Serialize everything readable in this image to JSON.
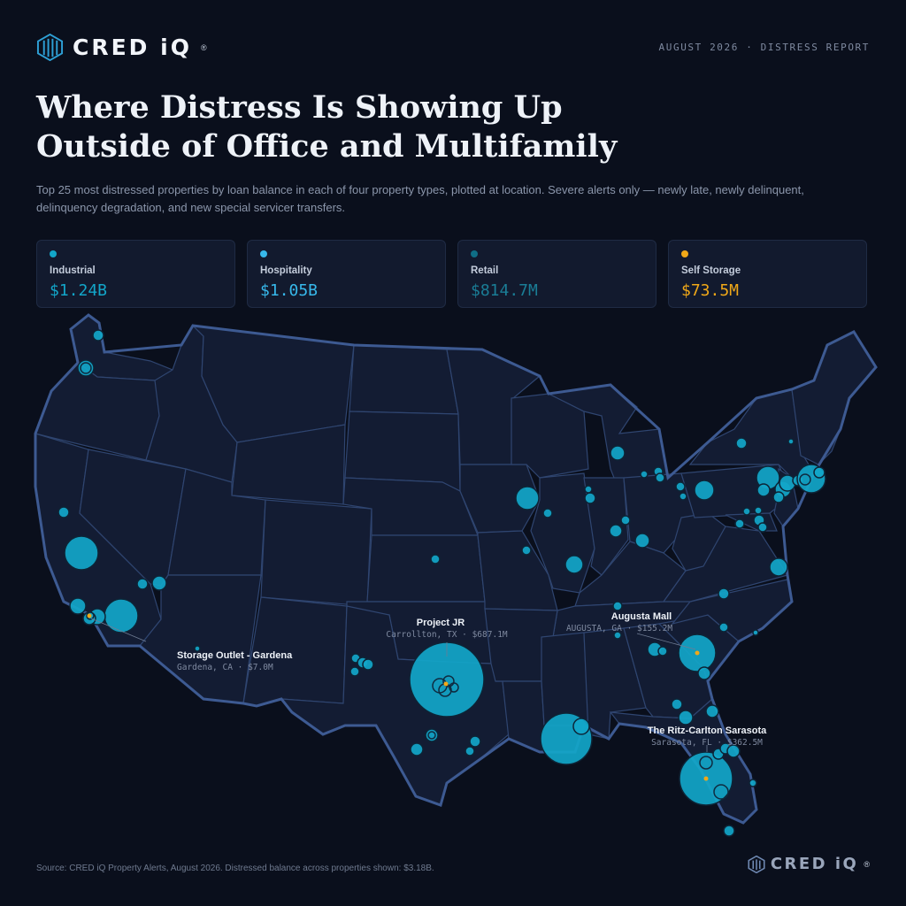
{
  "brand": {
    "name": "CRED iQ",
    "reg": "®"
  },
  "report_tag": "AUGUST 2026 · DISTRESS REPORT",
  "title_line1": "Where Distress Is Showing Up",
  "title_line2": "Outside of Office and Multifamily",
  "subtitle": "Top 25 most distressed properties by loan balance in each of four property types, plotted at location. Severe alerts only — newly late, newly delinquent, delinquency degradation, and new special servicer transfers.",
  "cards": [
    {
      "label": "Industrial",
      "value": "$1.24B",
      "color": "#12a6c9"
    },
    {
      "label": "Hospitality",
      "value": "$1.05B",
      "color": "#37b8ea"
    },
    {
      "label": "Retail",
      "value": "$814.7M",
      "color": "#0f6e86"
    },
    {
      "label": "Self Storage",
      "value": "$73.5M",
      "color": "#f0a818"
    }
  ],
  "callouts": {
    "project_jr": {
      "name": "Project JR",
      "meta": "Carrollton, TX · $687.1M"
    },
    "augusta_mall": {
      "name": "Augusta Mall",
      "meta": "AUGUSTA, GA · $155.2M"
    },
    "storage_outlet": {
      "name": "Storage Outlet - Gardena",
      "meta": "Gardena, CA · $7.0M"
    },
    "ritz_carlton": {
      "name": "The Ritz-Carlton Sarasota",
      "meta": "Sarasota, FL · $362.5M"
    }
  },
  "source": "Source: CRED iQ Property Alerts, August 2026. Distressed balance across properties shown: $3.18B.",
  "colors": {
    "bubble": "#12a6c9",
    "storage": "#f0a818",
    "background": "#0a0f1c"
  }
}
